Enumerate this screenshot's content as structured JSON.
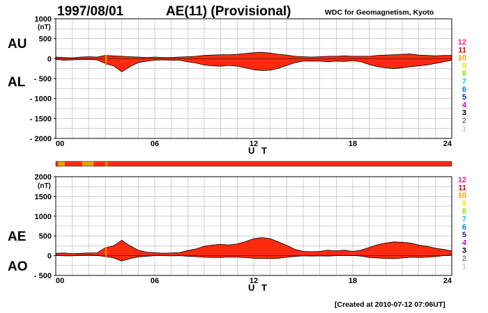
{
  "header": {
    "date": "1997/08/01",
    "title": "AE(11) (Provisional)",
    "organization": "WDC for Geomagnetism, Kyoto"
  },
  "footer": {
    "created": "[Created at 2010-07-12 07:06UT]"
  },
  "colors": {
    "fill_main": "#ff2a10",
    "fill_low": "#e8a000",
    "grid": "#b0b0b0",
    "frame": "#000000"
  },
  "colorscale": {
    "labels": [
      "12",
      "11",
      "10",
      "9",
      "8",
      "7",
      "6",
      "5",
      "4",
      "3",
      "2",
      "1"
    ],
    "colors": [
      "#ff1a8c",
      "#e00000",
      "#ff9c00",
      "#e8e800",
      "#90e000",
      "#00d0d0",
      "#0078ff",
      "#1a1ab0",
      "#d000d0",
      "#000000",
      "#808080",
      "#c8c8c8"
    ]
  },
  "chart_data": [
    {
      "type": "area",
      "panel": "AU/AL",
      "title": "",
      "side_labels": [
        "AU",
        "AL"
      ],
      "unit_label": "(nT)",
      "xlabel": "U T",
      "ylabel": "",
      "xlim": [
        0,
        24
      ],
      "ylim": [
        -2000,
        1000
      ],
      "y_ticks": [
        1000,
        500,
        0,
        -500,
        -1000,
        -1500,
        -2000
      ],
      "y_tick_labels": [
        "1000",
        "500",
        "0",
        "- 500",
        "- 1000",
        "- 1500",
        "- 2000"
      ],
      "x_ticks": [
        0,
        6,
        12,
        18,
        24
      ],
      "x_tick_labels": [
        "00",
        "06",
        "12",
        "18",
        "24"
      ],
      "grid": true,
      "x": [
        0,
        0.5,
        1,
        1.5,
        2,
        2.5,
        3,
        3.5,
        4,
        4.5,
        5,
        5.5,
        6,
        6.5,
        7,
        7.5,
        8,
        8.5,
        9,
        9.5,
        10,
        10.5,
        11,
        11.5,
        12,
        12.5,
        13,
        13.5,
        14,
        14.5,
        15,
        15.5,
        16,
        16.5,
        17,
        17.5,
        18,
        18.5,
        19,
        19.5,
        20,
        20.5,
        21,
        21.5,
        22,
        22.5,
        23,
        23.5,
        24
      ],
      "series": [
        {
          "name": "AU",
          "values": [
            40,
            30,
            20,
            40,
            50,
            40,
            80,
            70,
            60,
            50,
            40,
            30,
            40,
            30,
            30,
            40,
            50,
            60,
            80,
            90,
            100,
            100,
            110,
            130,
            150,
            160,
            140,
            110,
            90,
            60,
            50,
            40,
            50,
            60,
            60,
            70,
            60,
            60,
            60,
            80,
            90,
            100,
            110,
            120,
            90,
            80,
            70,
            80,
            80
          ]
        },
        {
          "name": "AL",
          "values": [
            -20,
            -40,
            -30,
            -20,
            -20,
            -30,
            -120,
            -180,
            -330,
            -200,
            -100,
            -60,
            -40,
            -30,
            -40,
            -40,
            -80,
            -110,
            -160,
            -180,
            -190,
            -170,
            -190,
            -230,
            -280,
            -300,
            -290,
            -240,
            -170,
            -100,
            -60,
            -60,
            -60,
            -80,
            -60,
            -70,
            -50,
            -80,
            -150,
            -200,
            -230,
            -250,
            -230,
            -200,
            -180,
            -160,
            -120,
            -80,
            -40
          ]
        }
      ]
    },
    {
      "type": "area",
      "panel": "AE/AO",
      "title": "",
      "side_labels": [
        "AE",
        "AO"
      ],
      "unit_label": "(nT)",
      "xlabel": "U T",
      "ylabel": "",
      "xlim": [
        0,
        24
      ],
      "ylim": [
        -500,
        2000
      ],
      "y_ticks": [
        2000,
        1500,
        1000,
        500,
        0,
        -500
      ],
      "y_tick_labels": [
        "2000",
        "1500",
        "1000",
        "500",
        "0",
        "- 500"
      ],
      "x_ticks": [
        0,
        6,
        12,
        18,
        24
      ],
      "x_tick_labels": [
        "00",
        "06",
        "12",
        "18",
        "24"
      ],
      "grid": true,
      "x": [
        0,
        0.5,
        1,
        1.5,
        2,
        2.5,
        3,
        3.5,
        4,
        4.5,
        5,
        5.5,
        6,
        6.5,
        7,
        7.5,
        8,
        8.5,
        9,
        9.5,
        10,
        10.5,
        11,
        11.5,
        12,
        12.5,
        13,
        13.5,
        14,
        14.5,
        15,
        15.5,
        16,
        16.5,
        17,
        17.5,
        18,
        18.5,
        19,
        19.5,
        20,
        20.5,
        21,
        21.5,
        22,
        22.5,
        23,
        23.5,
        24
      ],
      "series": [
        {
          "name": "AE",
          "values": [
            60,
            70,
            50,
            60,
            70,
            70,
            200,
            250,
            390,
            250,
            140,
            90,
            80,
            60,
            70,
            80,
            130,
            170,
            240,
            270,
            290,
            270,
            300,
            360,
            430,
            460,
            430,
            350,
            260,
            160,
            110,
            100,
            110,
            140,
            120,
            140,
            110,
            140,
            210,
            280,
            320,
            350,
            340,
            320,
            270,
            240,
            190,
            160,
            120
          ]
        },
        {
          "name": "AO",
          "values": [
            10,
            -5,
            -5,
            10,
            15,
            5,
            -20,
            -55,
            -135,
            -75,
            -30,
            -15,
            0,
            0,
            -5,
            0,
            -15,
            -25,
            -40,
            -45,
            -45,
            -35,
            -40,
            -50,
            -65,
            -70,
            -75,
            -65,
            -40,
            -20,
            -5,
            -10,
            -5,
            -10,
            0,
            0,
            5,
            -10,
            -45,
            -60,
            -70,
            -75,
            -60,
            -40,
            -45,
            -40,
            -25,
            0,
            20
          ]
        }
      ]
    }
  ],
  "band": {
    "segments": [
      {
        "start": 0.0,
        "end": 0.15,
        "color": "#ff2a10"
      },
      {
        "start": 0.15,
        "end": 0.55,
        "color": "#e8a000"
      },
      {
        "start": 0.55,
        "end": 1.6,
        "color": "#ff2a10"
      },
      {
        "start": 1.6,
        "end": 2.3,
        "color": "#e8a000"
      },
      {
        "start": 2.3,
        "end": 3.0,
        "color": "#ff2a10"
      },
      {
        "start": 3.0,
        "end": 3.12,
        "color": "#e8a000"
      },
      {
        "start": 3.12,
        "end": 24.0,
        "color": "#ff2a10"
      }
    ]
  }
}
